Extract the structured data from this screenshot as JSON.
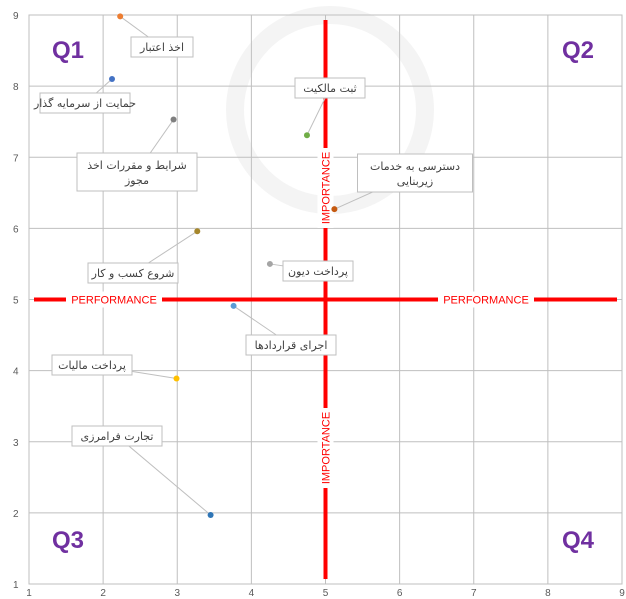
{
  "chart_data": {
    "type": "scatter",
    "title": "",
    "xlabel": "",
    "ylabel": "",
    "xlim": [
      1,
      9
    ],
    "ylim": [
      1,
      9
    ],
    "x_ticks": [
      "1",
      "2",
      "3",
      "4",
      "5",
      "6",
      "7",
      "8",
      "9"
    ],
    "y_ticks": [
      "1",
      "2",
      "3",
      "4",
      "5",
      "6",
      "7",
      "8",
      "9"
    ],
    "grid": true,
    "divider_lines": {
      "x_value": 5,
      "y_value": 5,
      "color": "#ff0000",
      "horizontal_label": "PERFORMANCE",
      "vertical_label": "IMPORTANCE"
    },
    "quadrants": [
      "Q1",
      "Q2",
      "Q3",
      "Q4"
    ],
    "points": [
      {
        "label": "اخذ اعتبار",
        "x": 2.23,
        "y": 8.98,
        "color": "#ed7d31"
      },
      {
        "label": "حمایت از سرمایه گذار",
        "x": 2.12,
        "y": 8.1,
        "color": "#4472c4"
      },
      {
        "label": "شرایط و مقررات اخذ مجوز",
        "x": 2.95,
        "y": 7.53,
        "color": "#7f7f7f"
      },
      {
        "label": "ثبت مالکیت",
        "x": 4.75,
        "y": 7.31,
        "color": "#70ad47"
      },
      {
        "label": "دسترسی به خدمات زیربنایی",
        "x": 5.12,
        "y": 6.27,
        "color": "#c55a11"
      },
      {
        "label": "شروع کسب و کار",
        "x": 3.27,
        "y": 5.96,
        "color": "#a5862b"
      },
      {
        "label": "پرداخت دیون",
        "x": 4.25,
        "y": 5.5,
        "color": "#a5a5a5"
      },
      {
        "label": "اجرای قراردادها",
        "x": 3.76,
        "y": 4.91,
        "color": "#5b9bd5"
      },
      {
        "label": "پرداخت مالیات",
        "x": 2.99,
        "y": 3.89,
        "color": "#ffc000"
      },
      {
        "label": "تجارت فرامرزی",
        "x": 3.45,
        "y": 1.97,
        "color": "#2e75b6"
      }
    ]
  }
}
